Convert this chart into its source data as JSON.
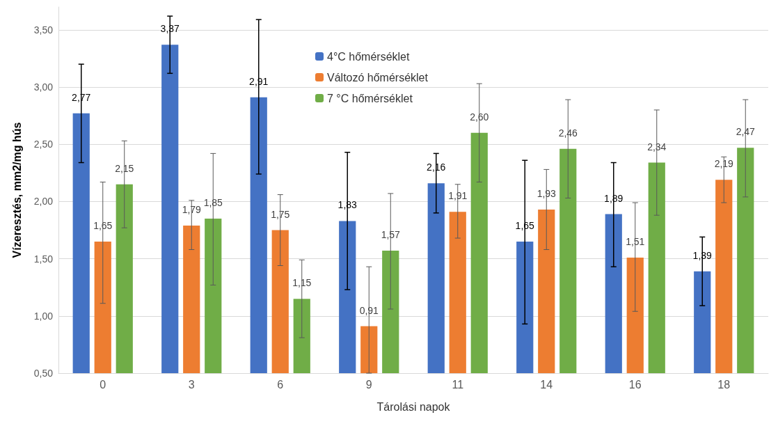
{
  "chart_data": {
    "type": "bar",
    "xlabel": "Tárolási napok",
    "ylabel": "Vízeresztés, mm2/mg hús",
    "categories": [
      "0",
      "3",
      "6",
      "9",
      "11",
      "14",
      "16",
      "18"
    ],
    "series": [
      {
        "name": "4°C hőmérséklet",
        "color": "#4472c4",
        "values": [
          2.77,
          3.37,
          2.91,
          1.83,
          2.16,
          1.65,
          1.89,
          1.39
        ],
        "value_labels": [
          "2,77",
          "3,37",
          "2,91",
          "1,83",
          "2,16",
          "1,65",
          "1,89",
          "1,39"
        ],
        "errors": [
          [
            2.34,
            3.2
          ],
          [
            3.12,
            3.62
          ],
          [
            2.24,
            3.59
          ],
          [
            1.23,
            2.43
          ],
          [
            1.9,
            2.42
          ],
          [
            0.93,
            2.36
          ],
          [
            1.43,
            2.34
          ],
          [
            1.09,
            1.69
          ]
        ]
      },
      {
        "name": "Változó hőmérséklet",
        "color": "#ed7d31",
        "values": [
          1.65,
          1.79,
          1.75,
          0.91,
          1.91,
          1.93,
          1.51,
          2.19
        ],
        "value_labels": [
          "1,65",
          "1,79",
          "1,75",
          "0,91",
          "1,91",
          "1,93",
          "1,51",
          "2,19"
        ],
        "errors": [
          [
            1.11,
            2.17
          ],
          [
            1.58,
            2.01
          ],
          [
            1.44,
            2.06
          ],
          [
            0.5,
            1.43
          ],
          [
            1.68,
            2.15
          ],
          [
            1.58,
            2.28
          ],
          [
            1.04,
            1.99
          ],
          [
            1.99,
            2.39
          ]
        ]
      },
      {
        "name": "7 °C hőmérséklet",
        "color": "#70ad47",
        "values": [
          2.15,
          1.85,
          1.15,
          1.57,
          2.6,
          2.46,
          2.34,
          2.47
        ],
        "value_labels": [
          "2,15",
          "1,85",
          "1,15",
          "1,57",
          "2,60",
          "2,46",
          "2,34",
          "2,47"
        ],
        "errors": [
          [
            1.77,
            2.53
          ],
          [
            1.27,
            2.42
          ],
          [
            0.81,
            1.49
          ],
          [
            1.06,
            2.07
          ],
          [
            2.17,
            3.03
          ],
          [
            2.03,
            2.89
          ],
          [
            1.88,
            2.8
          ],
          [
            2.04,
            2.89
          ]
        ]
      }
    ],
    "ylim": [
      0.5,
      3.7
    ],
    "yticks": [
      {
        "value": 0.5,
        "label": "0,50"
      },
      {
        "value": 1,
        "label": "1,00"
      },
      {
        "value": 1.5,
        "label": "1,50"
      },
      {
        "value": 2,
        "label": "2,00"
      },
      {
        "value": 2.5,
        "label": "2,50"
      },
      {
        "value": 3,
        "label": "3,00"
      },
      {
        "value": 3.5,
        "label": "3,50"
      }
    ],
    "grid": "y",
    "legend": "top"
  }
}
